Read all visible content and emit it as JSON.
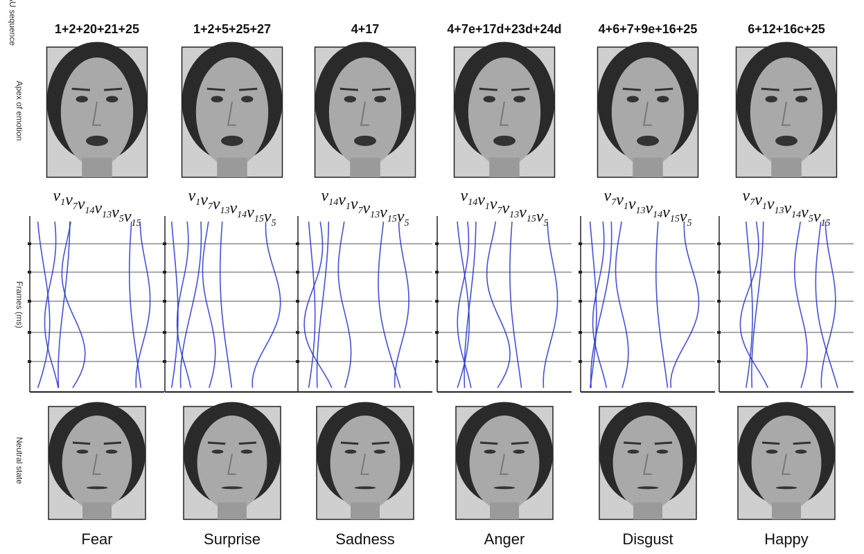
{
  "side_labels": {
    "au_sequence": "AU sequence",
    "apex": "Apex of emotion",
    "frames": "Frames (ms)",
    "neutral": "Neutral state"
  },
  "vector_symbol": "v",
  "columns": [
    {
      "au_sequence": "1+2+20+21+25",
      "vectors": [
        "1",
        "7",
        "14",
        "13",
        "5",
        "15"
      ],
      "emotion": "Fear"
    },
    {
      "au_sequence": "1+2+5+25+27",
      "vectors": [
        "1",
        "7",
        "13",
        "14",
        "15",
        "5"
      ],
      "emotion": "Surprise"
    },
    {
      "au_sequence": "4+17",
      "vectors": [
        "14",
        "1",
        "7",
        "13",
        "15",
        "5"
      ],
      "emotion": "Sadness"
    },
    {
      "au_sequence": "4+7e+17d+23d+24d",
      "vectors": [
        "14",
        "1",
        "7",
        "13",
        "15",
        "5"
      ],
      "emotion": "Anger"
    },
    {
      "au_sequence": "4+6+7+9e+16+25",
      "vectors": [
        "7",
        "1",
        "13",
        "14",
        "15",
        "5"
      ],
      "emotion": "Disgust"
    },
    {
      "au_sequence": "6+12+16c+25",
      "vectors": [
        "7",
        "1",
        "13",
        "14",
        "5",
        "15"
      ],
      "emotion": "Happy"
    }
  ]
}
